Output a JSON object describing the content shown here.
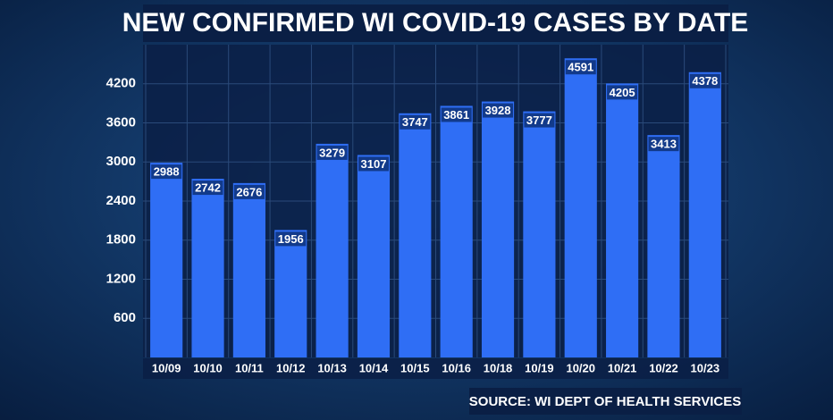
{
  "chart_data": {
    "type": "bar",
    "title": "NEW CONFIRMED WI COVID-19 CASES BY DATE",
    "source": "SOURCE: WI DEPT OF HEALTH SERVICES",
    "categories": [
      "10/09",
      "10/10",
      "10/11",
      "10/12",
      "10/13",
      "10/14",
      "10/15",
      "10/16",
      "10/18",
      "10/19",
      "10/20",
      "10/21",
      "10/22",
      "10/23"
    ],
    "values": [
      2988,
      2742,
      2676,
      1956,
      3279,
      3107,
      3747,
      3861,
      3928,
      3777,
      4591,
      4205,
      3413,
      4378
    ],
    "color": "#2f6ef5",
    "ylim": [
      0,
      4800
    ],
    "yticks": [
      600,
      1200,
      1800,
      2400,
      3000,
      3600,
      4200
    ],
    "grid": true
  }
}
